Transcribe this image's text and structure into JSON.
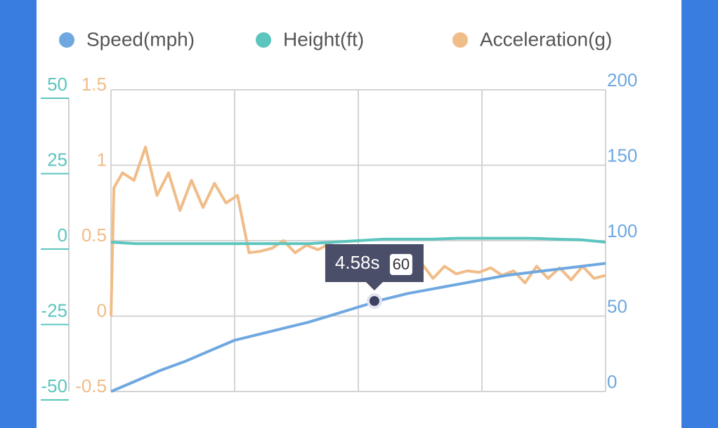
{
  "chart_data": {
    "type": "line",
    "xlim": [
      0,
      8.6
    ],
    "series": [
      {
        "name": "Speed(mph)",
        "color": "#6fa8e0",
        "axis": "y2",
        "x": [
          0,
          0.43,
          0.86,
          1.29,
          1.72,
          2.15,
          2.58,
          3.01,
          3.44,
          3.87,
          4.3,
          4.73,
          5.16,
          5.59,
          6.02,
          6.45,
          6.88,
          7.31,
          7.74,
          8.17,
          8.6
        ],
        "values": [
          0,
          7,
          14,
          20,
          27,
          34,
          38,
          42,
          46,
          51,
          56,
          61,
          65,
          68,
          71,
          74,
          77,
          79,
          81,
          83,
          85
        ]
      },
      {
        "name": "Height(ft)",
        "color": "#5bc5be",
        "axis": "y3",
        "x": [
          0,
          0.43,
          0.86,
          1.29,
          1.72,
          2.15,
          2.58,
          3.01,
          3.44,
          3.87,
          4.3,
          4.73,
          5.16,
          5.59,
          6.02,
          6.45,
          6.88,
          7.31,
          7.74,
          8.17,
          8.6
        ],
        "values": [
          -0.5,
          -1,
          -1,
          -1,
          -1,
          -1,
          -1,
          -1,
          -1,
          -0.5,
          0,
          0.5,
          0.5,
          0.5,
          0.8,
          0.8,
          0.8,
          0.8,
          0.5,
          0.3,
          -0.5
        ]
      },
      {
        "name": "Acceleration(g)",
        "color": "#f0bc88",
        "axis": "y",
        "x": [
          0,
          0.05,
          0.2,
          0.4,
          0.6,
          0.8,
          1.0,
          1.2,
          1.4,
          1.6,
          1.8,
          2.0,
          2.2,
          2.4,
          2.6,
          2.8,
          3.0,
          3.2,
          3.4,
          3.6,
          3.8,
          4.0,
          4.2,
          4.4,
          4.6,
          4.8,
          5.0,
          5.2,
          5.4,
          5.6,
          5.8,
          6.0,
          6.2,
          6.4,
          6.6,
          6.8,
          7.0,
          7.2,
          7.4,
          7.6,
          7.8,
          8.0,
          8.2,
          8.4,
          8.6
        ],
        "values": [
          0,
          0.85,
          0.95,
          0.9,
          1.12,
          0.8,
          0.95,
          0.7,
          0.9,
          0.72,
          0.88,
          0.75,
          0.8,
          0.42,
          0.43,
          0.45,
          0.5,
          0.42,
          0.47,
          0.44,
          0.48,
          0.43,
          0.45,
          0.42,
          0.46,
          0.4,
          0.38,
          0.3,
          0.35,
          0.25,
          0.33,
          0.28,
          0.3,
          0.29,
          0.32,
          0.27,
          0.3,
          0.22,
          0.33,
          0.25,
          0.32,
          0.24,
          0.33,
          0.25,
          0.27
        ]
      }
    ],
    "ylim": [
      -0.5,
      1.5
    ],
    "yticks": [
      -0.5,
      0,
      0.5,
      1,
      1.5
    ],
    "y2lim": [
      0,
      200
    ],
    "y2ticks": [
      0,
      50,
      100,
      150,
      200
    ],
    "y3lim": [
      -50,
      50
    ],
    "y3ticks": [
      -50,
      -25,
      0,
      25,
      50
    ],
    "grid": true,
    "tooltip": {
      "x": 4.58,
      "x_label": "4.58s",
      "y": 60
    }
  }
}
